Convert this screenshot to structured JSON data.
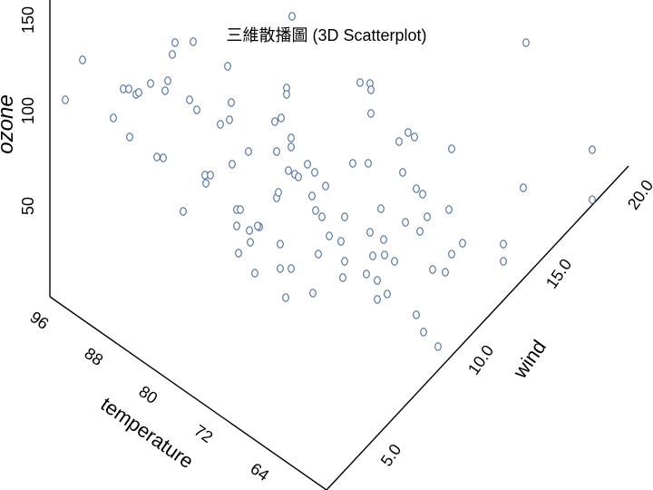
{
  "chart_data": {
    "type": "scatter",
    "title": "三維散播圖 (3D Scatterplot)",
    "axes": {
      "x": {
        "label": "temperature",
        "ticks": [
          "96",
          "88",
          "80",
          "72",
          "64"
        ]
      },
      "y": {
        "label": "wind",
        "ticks": [
          "5.0",
          "10.0",
          "15.0",
          "20.0"
        ]
      },
      "z": {
        "label": "ozone",
        "ticks": [
          "50",
          "100",
          "150"
        ]
      }
    },
    "marker_color": "#4a6e9a",
    "points": [
      [
        72,
        110
      ],
      [
        91,
        66
      ],
      [
        125,
        130
      ],
      [
        143,
        151
      ],
      [
        136,
        98
      ],
      [
        142,
        98
      ],
      [
        150,
        104
      ],
      [
        153,
        102
      ],
      [
        166,
        92
      ],
      [
        173,
        173
      ],
      [
        180,
        174
      ],
      [
        182,
        100
      ],
      [
        185,
        89
      ],
      [
        190,
        60
      ],
      [
        193,
        47
      ],
      [
        202,
        233
      ],
      [
        209,
        110
      ],
      [
        213,
        46
      ],
      [
        217,
        121
      ],
      [
        226,
        193
      ],
      [
        227,
        202
      ],
      [
        232,
        193
      ],
      [
        243,
        137
      ],
      [
        251,
        73
      ],
      [
        253,
        132
      ],
      [
        255,
        113
      ],
      [
        256,
        181
      ],
      [
        261,
        231
      ],
      [
        265,
        231
      ],
      [
        261,
        249
      ],
      [
        263,
        279
      ],
      [
        275,
        254
      ],
      [
        276,
        267
      ],
      [
        274,
        167
      ],
      [
        286,
        250
      ],
      [
        284,
        249
      ],
      [
        281,
        301
      ],
      [
        303,
        134
      ],
      [
        305,
        167
      ],
      [
        305,
        218
      ],
      [
        307,
        212
      ],
      [
        310,
        130
      ],
      [
        316,
        97
      ],
      [
        316,
        104
      ],
      [
        321,
        152
      ],
      [
        321,
        162
      ],
      [
        309,
        269
      ],
      [
        309,
        296
      ],
      [
        321,
        296
      ],
      [
        315,
        328
      ],
      [
        318,
        188
      ],
      [
        325,
        192
      ],
      [
        329,
        195
      ],
      [
        339,
        181
      ],
      [
        344,
        216
      ],
      [
        347,
        190
      ],
      [
        348,
        232
      ],
      [
        355,
        239
      ],
      [
        359,
        205
      ],
      [
        363,
        260
      ],
      [
        351,
        280
      ],
      [
        345,
        323
      ],
      [
        380,
        239
      ],
      [
        376,
        266
      ],
      [
        380,
        288
      ],
      [
        378,
        306
      ],
      [
        389,
        180
      ],
      [
        397,
        91
      ],
      [
        408,
        92
      ],
      [
        409,
        99
      ],
      [
        409,
        125
      ],
      [
        406,
        180
      ],
      [
        408,
        256
      ],
      [
        404,
        302
      ],
      [
        411,
        282
      ],
      [
        416,
        309
      ],
      [
        416,
        330
      ],
      [
        420,
        230
      ],
      [
        423,
        264
      ],
      [
        424,
        281
      ],
      [
        427,
        324
      ],
      [
        435,
        288
      ],
      [
        440,
        156
      ],
      [
        444,
        190
      ],
      [
        447,
        245
      ],
      [
        450,
        146
      ],
      [
        457,
        151
      ],
      [
        459,
        208
      ],
      [
        463,
        255
      ],
      [
        466,
        214
      ],
      [
        471,
        239
      ],
      [
        459,
        347
      ],
      [
        467,
        366
      ],
      [
        483,
        382
      ],
      [
        477,
        297
      ],
      [
        491,
        300
      ],
      [
        495,
        231
      ],
      [
        498,
        164
      ],
      [
        498,
        280
      ],
      [
        510,
        268
      ],
      [
        555,
        269
      ],
      [
        555,
        288
      ],
      [
        577,
        207
      ],
      [
        580,
        47
      ],
      [
        653,
        165
      ],
      [
        653,
        220
      ],
      [
        322,
        18
      ]
    ]
  }
}
